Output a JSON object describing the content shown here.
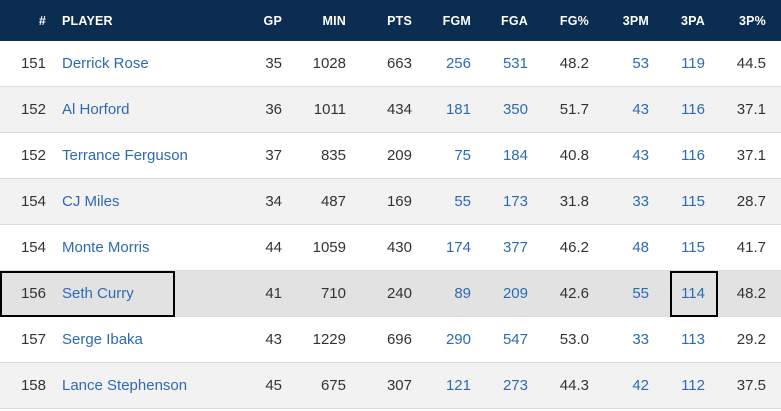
{
  "header": {
    "rank": "#",
    "player": "PLAYER",
    "gp": "GP",
    "min": "MIN",
    "pts": "PTS",
    "fgm": "FGM",
    "fga": "FGA",
    "fgp": "FG%",
    "tpm": "3PM",
    "tpa": "3PA",
    "tpp": "3P%"
  },
  "rows": [
    {
      "rank": "151",
      "player": "Derrick Rose",
      "gp": "35",
      "min": "1028",
      "pts": "663",
      "fgm": "256",
      "fga": "531",
      "fgp": "48.2",
      "tpm": "53",
      "tpa": "119",
      "tpp": "44.5"
    },
    {
      "rank": "152",
      "player": "Al Horford",
      "gp": "36",
      "min": "1011",
      "pts": "434",
      "fgm": "181",
      "fga": "350",
      "fgp": "51.7",
      "tpm": "43",
      "tpa": "116",
      "tpp": "37.1"
    },
    {
      "rank": "152",
      "player": "Terrance Ferguson",
      "gp": "37",
      "min": "835",
      "pts": "209",
      "fgm": "75",
      "fga": "184",
      "fgp": "40.8",
      "tpm": "43",
      "tpa": "116",
      "tpp": "37.1"
    },
    {
      "rank": "154",
      "player": "CJ Miles",
      "gp": "34",
      "min": "487",
      "pts": "169",
      "fgm": "55",
      "fga": "173",
      "fgp": "31.8",
      "tpm": "33",
      "tpa": "115",
      "tpp": "28.7"
    },
    {
      "rank": "154",
      "player": "Monte Morris",
      "gp": "44",
      "min": "1059",
      "pts": "430",
      "fgm": "174",
      "fga": "377",
      "fgp": "46.2",
      "tpm": "48",
      "tpa": "115",
      "tpp": "41.7"
    },
    {
      "rank": "156",
      "player": "Seth Curry",
      "gp": "41",
      "min": "710",
      "pts": "240",
      "fgm": "89",
      "fga": "209",
      "fgp": "42.6",
      "tpm": "55",
      "tpa": "114",
      "tpp": "48.2"
    },
    {
      "rank": "157",
      "player": "Serge Ibaka",
      "gp": "43",
      "min": "1229",
      "pts": "696",
      "fgm": "290",
      "fga": "547",
      "fgp": "53.0",
      "tpm": "33",
      "tpa": "113",
      "tpp": "29.2"
    },
    {
      "rank": "158",
      "player": "Lance Stephenson",
      "gp": "45",
      "min": "675",
      "pts": "307",
      "fgm": "121",
      "fga": "273",
      "fgp": "44.3",
      "tpm": "42",
      "tpa": "112",
      "tpp": "37.5"
    }
  ],
  "colors": {
    "header_bg": "#0b2d52",
    "link": "#2d6ab2",
    "highlight": "#e2e2e2"
  }
}
